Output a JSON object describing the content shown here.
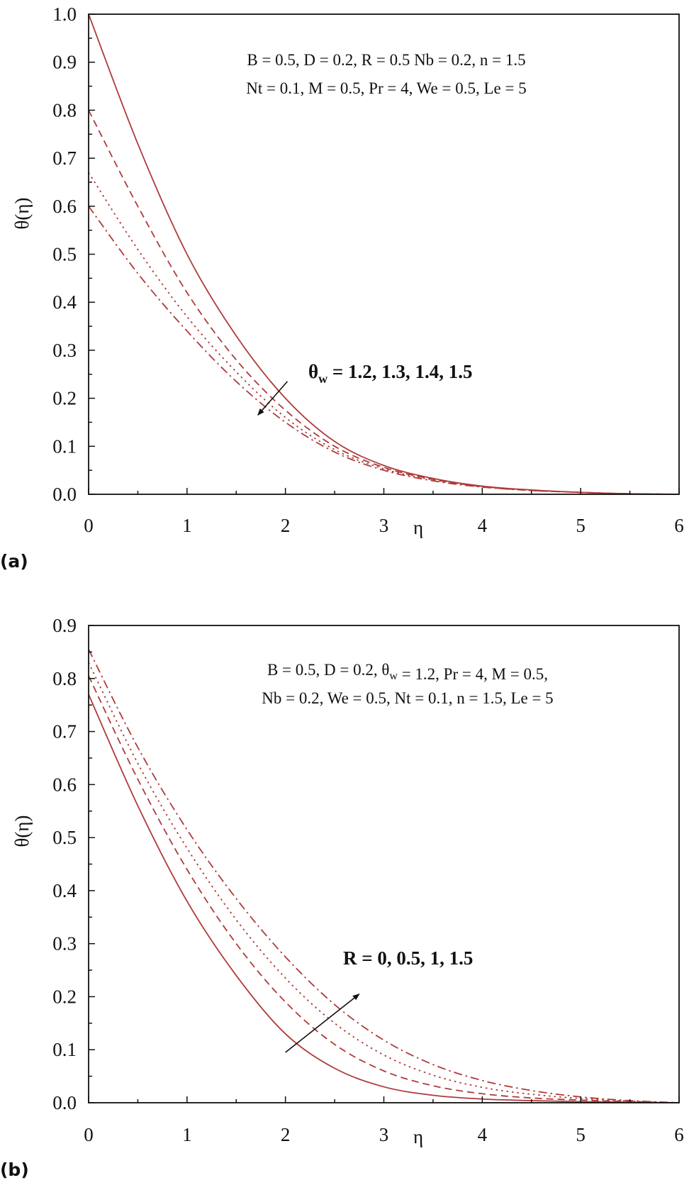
{
  "chart_data": [
    {
      "type": "line",
      "panel_label": "(a)",
      "xlabel": "η",
      "ylabel": "θ(η)",
      "xlim": [
        0,
        6
      ],
      "ylim": [
        0,
        1.0
      ],
      "x_ticks": [
        "0",
        "1",
        "2",
        "3",
        "4",
        "5",
        "6"
      ],
      "y_ticks": [
        "0.0",
        "0.1",
        "0.2",
        "0.3",
        "0.4",
        "0.5",
        "0.6",
        "0.7",
        "0.8",
        "0.9",
        "1.0"
      ],
      "params": [
        "B = 0.5, D = 0.2, R = 0.5 Nb = 0.2, n = 1.5",
        "Nt = 0.1, M = 0.5, Pr = 4, We = 0.5, Le = 5"
      ],
      "annotation": {
        "parts": [
          {
            "t": "θ",
            "sub": false
          },
          {
            "t": "w",
            "sub": true
          },
          {
            "t": " = 1.2, 1.3, 1.4, 1.5",
            "sub": false
          }
        ]
      },
      "arrow": {
        "from": [
          2.02,
          0.235
        ],
        "to": [
          1.72,
          0.165
        ]
      },
      "grid": false,
      "color": "#b03a3a",
      "x": [
        0,
        0.5,
        1,
        1.5,
        2,
        2.5,
        3,
        3.5,
        4,
        4.5,
        5,
        5.5,
        6
      ],
      "series": [
        {
          "style": "solid",
          "values": [
            1.0,
            0.73,
            0.5,
            0.33,
            0.2,
            0.11,
            0.06,
            0.033,
            0.017,
            0.009,
            0.004,
            0.001,
            0.0
          ]
        },
        {
          "style": "dashed",
          "values": [
            0.8,
            0.6,
            0.42,
            0.28,
            0.175,
            0.1,
            0.056,
            0.031,
            0.016,
            0.008,
            0.004,
            0.001,
            0.0
          ]
        },
        {
          "style": "dotted",
          "values": [
            0.67,
            0.51,
            0.37,
            0.255,
            0.16,
            0.093,
            0.053,
            0.03,
            0.016,
            0.008,
            0.004,
            0.001,
            0.0
          ]
        },
        {
          "style": "dashdot",
          "values": [
            0.6,
            0.46,
            0.34,
            0.235,
            0.15,
            0.088,
            0.05,
            0.028,
            0.015,
            0.008,
            0.004,
            0.001,
            0.0
          ]
        }
      ]
    },
    {
      "type": "line",
      "panel_label": "(b)",
      "xlabel": "η",
      "ylabel": "θ(η)",
      "xlim": [
        0,
        6
      ],
      "ylim": [
        0,
        0.9
      ],
      "x_ticks": [
        "0",
        "1",
        "2",
        "3",
        "4",
        "5",
        "6"
      ],
      "y_ticks": [
        "0.0",
        "0.1",
        "0.2",
        "0.3",
        "0.4",
        "0.5",
        "0.6",
        "0.7",
        "0.8",
        "0.9"
      ],
      "params": [
        "B = 0.5, D = 0.2, θ_w = 1.2, Pr = 4, M = 0.5,",
        "Nb = 0.2, We = 0.5, Nt = 0.1, n = 1.5, Le = 5"
      ],
      "annotation": {
        "parts": [
          {
            "t": "R = 0, 0.5, 1, 1.5",
            "sub": false
          }
        ]
      },
      "arrow": {
        "from": [
          2.0,
          0.095
        ],
        "to": [
          2.75,
          0.205
        ]
      },
      "grid": false,
      "color": "#b03a3a",
      "x": [
        0,
        0.5,
        1,
        1.5,
        2,
        2.5,
        3,
        3.5,
        4,
        4.5,
        5,
        5.5,
        6
      ],
      "series": [
        {
          "style": "solid",
          "values": [
            0.77,
            0.56,
            0.38,
            0.24,
            0.13,
            0.065,
            0.03,
            0.014,
            0.007,
            0.004,
            0.002,
            0.001,
            0.0
          ]
        },
        {
          "style": "dashed",
          "values": [
            0.805,
            0.61,
            0.44,
            0.3,
            0.19,
            0.11,
            0.06,
            0.032,
            0.017,
            0.009,
            0.005,
            0.002,
            0.0
          ]
        },
        {
          "style": "dotted",
          "values": [
            0.83,
            0.64,
            0.48,
            0.345,
            0.235,
            0.15,
            0.09,
            0.052,
            0.029,
            0.016,
            0.008,
            0.003,
            0.0
          ]
        },
        {
          "style": "dashdot",
          "values": [
            0.855,
            0.67,
            0.515,
            0.385,
            0.275,
            0.185,
            0.118,
            0.072,
            0.042,
            0.023,
            0.011,
            0.004,
            0.0
          ]
        }
      ]
    }
  ]
}
